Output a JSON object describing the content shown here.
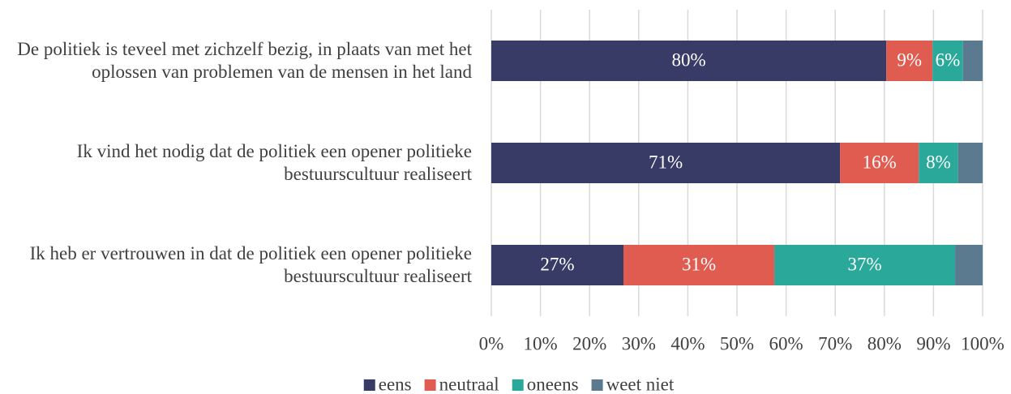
{
  "chart_data": {
    "type": "stacked_barh",
    "categories": [
      "De politiek is teveel met zichzelf bezig, in plaats van met het oplossen van problemen van de mensen in het land",
      "Ik vind het nodig dat de politiek een opener politieke bestuurscultuur realiseert",
      "Ik heb er vertrouwen in dat de politiek een opener politieke bestuurscultuur realiseert"
    ],
    "series": [
      {
        "name": "eens",
        "color": "#383b66",
        "values": [
          80.4,
          71.0,
          26.9
        ],
        "value_labels": [
          "80%",
          "71%",
          "27%"
        ]
      },
      {
        "name": "neutraal",
        "color": "#e05c50",
        "values": [
          9.4,
          16.0,
          30.7
        ],
        "value_labels": [
          "9%",
          "16%",
          "31%"
        ]
      },
      {
        "name": "oneens",
        "color": "#2aa89a",
        "values": [
          6.2,
          8.0,
          36.8
        ],
        "value_labels": [
          "6%",
          "8%",
          "37%"
        ]
      },
      {
        "name": "weet niet",
        "color": "#5c7a8f",
        "values": [
          4.0,
          5.0,
          5.6
        ],
        "value_labels": [
          null,
          null,
          null
        ]
      }
    ],
    "xlim": [
      0,
      100
    ],
    "xticks": [
      {
        "value": 0,
        "label": "0%"
      },
      {
        "value": 10,
        "label": "10%"
      },
      {
        "value": 20,
        "label": "20%"
      },
      {
        "value": 30,
        "label": "30%"
      },
      {
        "value": 40,
        "label": "40%"
      },
      {
        "value": 50,
        "label": "50%"
      },
      {
        "value": 60,
        "label": "60%"
      },
      {
        "value": 70,
        "label": "70%"
      },
      {
        "value": 80,
        "label": "80%"
      },
      {
        "value": 90,
        "label": "90%"
      },
      {
        "value": 100,
        "label": "100%"
      }
    ],
    "grid": true,
    "legend": "bottom"
  }
}
